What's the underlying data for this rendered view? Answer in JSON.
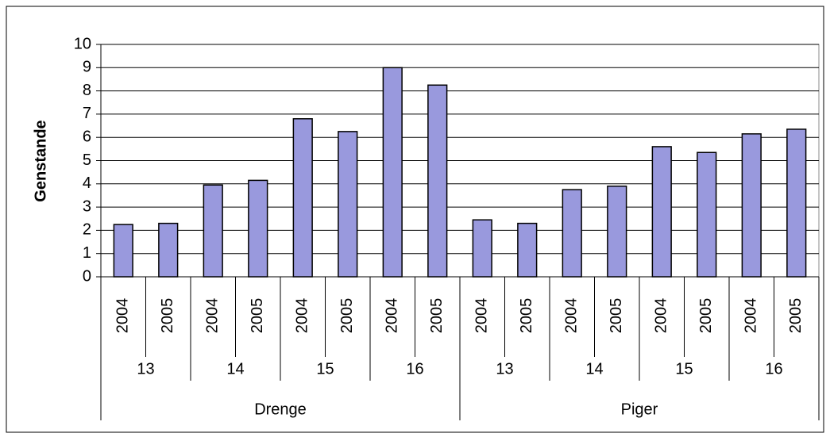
{
  "chart_data": {
    "type": "bar",
    "ylabel": "Genstande",
    "categories": [
      "2004",
      "2005",
      "2004",
      "2005",
      "2004",
      "2005",
      "2004",
      "2005",
      "2004",
      "2005",
      "2004",
      "2005",
      "2004",
      "2005",
      "2004",
      "2005"
    ],
    "age_groups": [
      "13",
      "14",
      "15",
      "16",
      "13",
      "14",
      "15",
      "16"
    ],
    "gender_groups": [
      "Drenge",
      "Piger"
    ],
    "values": [
      2.25,
      2.3,
      3.95,
      4.15,
      6.8,
      6.25,
      9.0,
      8.25,
      2.45,
      2.3,
      3.75,
      3.9,
      5.6,
      5.35,
      6.15,
      6.35
    ],
    "color": "#9999dd",
    "ylim": [
      0,
      10
    ],
    "yticks": [
      0,
      1,
      2,
      3,
      4,
      5,
      6,
      7,
      8,
      9,
      10
    ],
    "grid": true
  }
}
